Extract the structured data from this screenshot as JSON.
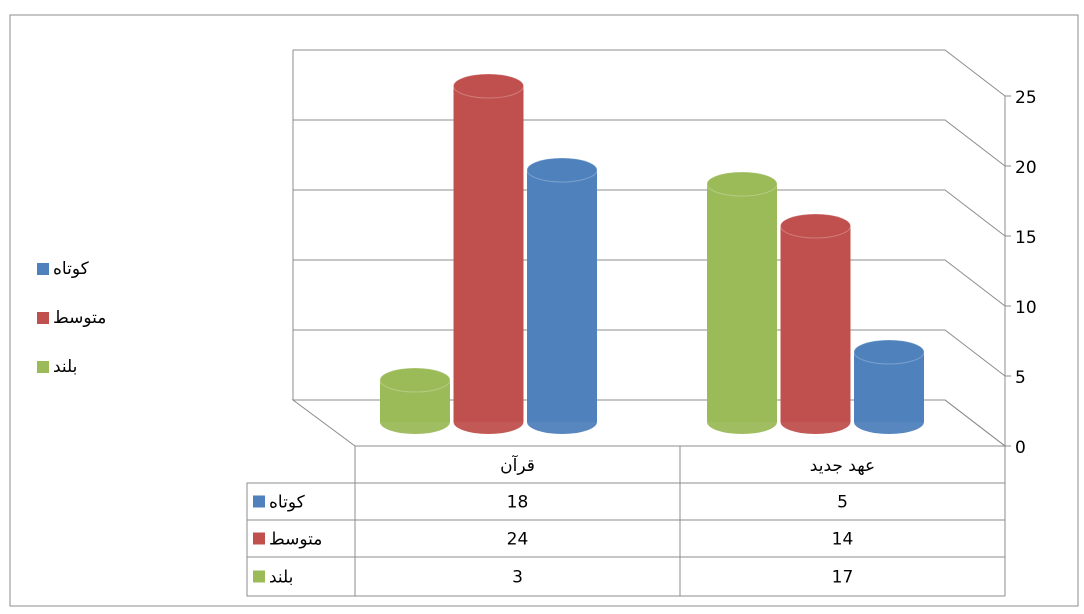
{
  "chart_data": {
    "type": "bar",
    "categories": [
      "قرآن",
      "عهد جدید"
    ],
    "series": [
      {
        "name": "کوتاه",
        "color": "#4f81bd",
        "values": [
          18,
          5
        ]
      },
      {
        "name": "متوسط",
        "color": "#c0504d",
        "values": [
          24,
          14
        ]
      },
      {
        "name": "بلند",
        "color": "#9bbb59",
        "values": [
          3,
          17
        ]
      }
    ],
    "ylim": [
      0,
      25
    ],
    "yticks": [
      0,
      5,
      10,
      15,
      20,
      25
    ],
    "grid": true
  }
}
